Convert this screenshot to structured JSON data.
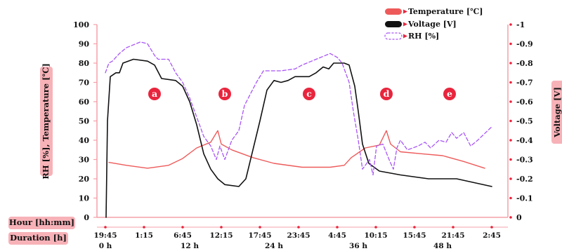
{
  "chart_data": {
    "type": "line",
    "x_axis": {
      "hour_label": "Hour [hh:mm]",
      "duration_label": "Duration [h]",
      "hour_ticks": [
        "19:45",
        "1:15",
        "6:45",
        "12:15",
        "17:45",
        "23:45",
        "4:45",
        "10:15",
        "15:45",
        "21:45",
        "2:45"
      ],
      "duration_ticks": [
        {
          "label": "0 h",
          "hours": 0
        },
        {
          "label": "12 h",
          "hours": 12
        },
        {
          "label": "24 h",
          "hours": 24
        },
        {
          "label": "36 h",
          "hours": 36
        },
        {
          "label": "48 h",
          "hours": 48
        }
      ],
      "range_hours": [
        0,
        55
      ]
    },
    "y_left": {
      "label": "RH [%], Temperature [℃]",
      "ticks": [
        "100",
        "90",
        "80",
        "70",
        "60",
        "50",
        "40",
        "30",
        "20",
        "10",
        "0"
      ],
      "ylim": [
        0,
        100
      ]
    },
    "y_right": {
      "label": "Voltage [V]",
      "ticks": [
        "-1",
        "-0.9",
        "-0.8",
        "-0.7",
        "-0.6",
        "-0.5",
        "-0.4",
        "-0.3",
        "-0.2",
        "-0.1",
        "0"
      ],
      "ylim": [
        0,
        -1
      ]
    },
    "phases": [
      {
        "label": "a",
        "hours": 7,
        "y": 64
      },
      {
        "label": "b",
        "hours": 17,
        "y": 64
      },
      {
        "label": "c",
        "hours": 29,
        "y": 64
      },
      {
        "label": "d",
        "hours": 40,
        "y": 64
      },
      {
        "label": "e",
        "hours": 49,
        "y": 64
      }
    ],
    "series": [
      {
        "name": "Temperature [℃]",
        "axis": "left",
        "color": "#ee5a5a",
        "style": "solid",
        "points": [
          [
            0.5,
            28.5
          ],
          [
            3,
            27
          ],
          [
            6,
            25.5
          ],
          [
            9,
            27
          ],
          [
            11,
            30.5
          ],
          [
            13,
            36
          ],
          [
            15,
            39
          ],
          [
            16,
            45
          ],
          [
            16.5,
            38
          ],
          [
            18,
            35
          ],
          [
            21,
            31
          ],
          [
            24,
            28
          ],
          [
            28,
            26
          ],
          [
            32,
            26
          ],
          [
            34,
            27
          ],
          [
            35,
            31
          ],
          [
            37,
            36
          ],
          [
            39,
            37.5
          ],
          [
            40,
            45
          ],
          [
            40.6,
            38
          ],
          [
            42,
            34
          ],
          [
            45,
            33
          ],
          [
            48,
            32
          ],
          [
            51,
            29
          ],
          [
            54,
            25.5
          ]
        ]
      },
      {
        "name": "Voltage [V]",
        "axis": "right",
        "color": "#111111",
        "style": "solid",
        "points": [
          [
            0.1,
            0
          ],
          [
            0.3,
            -0.5
          ],
          [
            0.7,
            -0.73
          ],
          [
            1.5,
            -0.75
          ],
          [
            2,
            -0.75
          ],
          [
            2.5,
            -0.8
          ],
          [
            4,
            -0.82
          ],
          [
            6,
            -0.81
          ],
          [
            7,
            -0.79
          ],
          [
            8,
            -0.72
          ],
          [
            10,
            -0.71
          ],
          [
            11,
            -0.68
          ],
          [
            12,
            -0.6
          ],
          [
            13,
            -0.48
          ],
          [
            14,
            -0.33
          ],
          [
            15,
            -0.25
          ],
          [
            16,
            -0.2
          ],
          [
            17,
            -0.17
          ],
          [
            19,
            -0.16
          ],
          [
            20,
            -0.2
          ],
          [
            21,
            -0.35
          ],
          [
            22,
            -0.5
          ],
          [
            23,
            -0.66
          ],
          [
            24,
            -0.71
          ],
          [
            25,
            -0.7
          ],
          [
            26,
            -0.71
          ],
          [
            27,
            -0.73
          ],
          [
            29,
            -0.73
          ],
          [
            30,
            -0.75
          ],
          [
            31,
            -0.78
          ],
          [
            31.8,
            -0.77
          ],
          [
            32.5,
            -0.8
          ],
          [
            34,
            -0.8
          ],
          [
            34.7,
            -0.79
          ],
          [
            35.5,
            -0.68
          ],
          [
            36,
            -0.55
          ],
          [
            36.6,
            -0.38
          ],
          [
            37.5,
            -0.28
          ],
          [
            39,
            -0.24
          ],
          [
            42,
            -0.22
          ],
          [
            46,
            -0.2
          ],
          [
            50,
            -0.2
          ],
          [
            55,
            -0.16
          ]
        ]
      },
      {
        "name": "RH [%]",
        "axis": "left",
        "color": "#a855f7",
        "style": "dashed",
        "points": [
          [
            0,
            75
          ],
          [
            0.5,
            80
          ],
          [
            1,
            81
          ],
          [
            2,
            85
          ],
          [
            3,
            88
          ],
          [
            5,
            91
          ],
          [
            6,
            90
          ],
          [
            7,
            84
          ],
          [
            7.5,
            82
          ],
          [
            9,
            82
          ],
          [
            10,
            75
          ],
          [
            11,
            70
          ],
          [
            12,
            62
          ],
          [
            13,
            52
          ],
          [
            14,
            42
          ],
          [
            15,
            37
          ],
          [
            15.8,
            30
          ],
          [
            16.3,
            37
          ],
          [
            17,
            30
          ],
          [
            18,
            40
          ],
          [
            19,
            45
          ],
          [
            19.8,
            58
          ],
          [
            20.5,
            63
          ],
          [
            21.5,
            70
          ],
          [
            22.5,
            76
          ],
          [
            23.5,
            76
          ],
          [
            25,
            76
          ],
          [
            27,
            77
          ],
          [
            28,
            79
          ],
          [
            30,
            82
          ],
          [
            32,
            85
          ],
          [
            33,
            83
          ],
          [
            33.7,
            80
          ],
          [
            34.7,
            70
          ],
          [
            35.3,
            55
          ],
          [
            36,
            40
          ],
          [
            36.6,
            25
          ],
          [
            37.6,
            30
          ],
          [
            38.1,
            22
          ],
          [
            38.6,
            37
          ],
          [
            39.5,
            38
          ],
          [
            40.5,
            29
          ],
          [
            41,
            25
          ],
          [
            41.5,
            36
          ],
          [
            42,
            40
          ],
          [
            43,
            35
          ],
          [
            44.5,
            37
          ],
          [
            45.5,
            39
          ],
          [
            46.3,
            36
          ],
          [
            47.5,
            40
          ],
          [
            48.5,
            39
          ],
          [
            49.3,
            44
          ],
          [
            50,
            41
          ],
          [
            51,
            44
          ],
          [
            52,
            37
          ],
          [
            53,
            40
          ],
          [
            55,
            47
          ]
        ]
      }
    ],
    "legend": {
      "placement": "top-right",
      "entries": [
        {
          "label": "Temperature [℃]",
          "color": "#ee5a5a",
          "style": "solid"
        },
        {
          "label": "Voltage [V]",
          "color": "#111111",
          "style": "solid"
        },
        {
          "label": "RH [%]",
          "color": "#a855f7",
          "style": "dashed"
        }
      ]
    },
    "colors": {
      "axis_frame": "#f4a0a8",
      "label_badge": "#f7b2b8",
      "phase_circle": "#e8253d"
    }
  }
}
